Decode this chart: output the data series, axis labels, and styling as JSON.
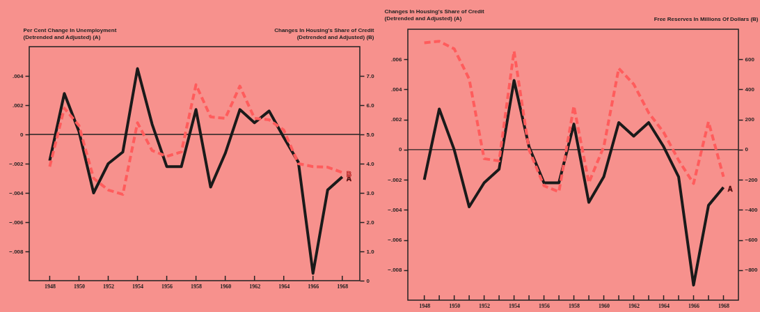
{
  "chart_data": [
    {
      "type": "line",
      "ylabel": "Per Cent Change In Unemployment\n(Detrended and Adjusted)  (A)",
      "y2label": "Changes In Housing's Share of Credit\n(Detrended and Adjusted)    (B)",
      "x": [
        1948,
        1949,
        1950,
        1951,
        1952,
        1953,
        1954,
        1955,
        1956,
        1957,
        1958,
        1959,
        1960,
        1961,
        1962,
        1963,
        1964,
        1965,
        1966,
        1967,
        1968
      ],
      "xlim": [
        1946.6,
        1969.2
      ],
      "xticks": [
        1948,
        1950,
        1952,
        1954,
        1956,
        1958,
        1960,
        1962,
        1964,
        1966,
        1968
      ],
      "ylim": [
        -0.01,
        0.006
      ],
      "yticks": [
        {
          "value": 0.004,
          "label": ".004"
        },
        {
          "value": 0.002,
          "label": ".002"
        },
        0,
        {
          "value": -0.002,
          "label": "−.002"
        },
        {
          "value": -0.004,
          "label": "−.004"
        },
        {
          "value": -0.006,
          "label": "−.006"
        },
        {
          "value": -0.008,
          "label": "−.008"
        }
      ],
      "y2lim": [
        0,
        8
      ],
      "y2ticks": [
        {
          "value": 7,
          "label": "7.0"
        },
        {
          "value": 6,
          "label": "6.0"
        },
        {
          "value": 5,
          "label": "5.0"
        },
        {
          "value": 4,
          "label": "4.0"
        },
        {
          "value": 3,
          "label": "3.0"
        },
        {
          "value": 2,
          "label": "2.0"
        },
        {
          "value": 1,
          "label": "1.0"
        },
        0
      ],
      "ref_lines": [
        {
          "axis": "y",
          "value": 0
        }
      ],
      "series": [
        {
          "name": "A",
          "color": "#1a1a1a",
          "line_style": "solid",
          "values": [
            -0.0018,
            0.0028,
            0.0002,
            -0.004,
            -0.002,
            -0.0012,
            0.0045,
            0.0007,
            -0.0022,
            -0.0022,
            0.0017,
            -0.0036,
            -0.0013,
            0.0017,
            0.0008,
            0.0016,
            -0.0002,
            -0.0019,
            -0.0095,
            -0.0038,
            -0.0029
          ]
        },
        {
          "name": "B",
          "color": "#ff5c5c",
          "line_style": "dashed",
          "axis": "y2",
          "values": [
            3.9,
            5.9,
            5.3,
            3.5,
            3.1,
            2.95,
            5.4,
            4.45,
            4.25,
            4.4,
            6.7,
            5.6,
            5.55,
            6.65,
            5.55,
            5.5,
            5.15,
            4.0,
            3.9,
            3.88,
            3.7
          ]
        }
      ]
    },
    {
      "type": "line",
      "ylabel": "Changes In Housing's Share of Credit\n(Detrended and Adjusted)  (A)",
      "y2label": "Free Reserves In Millions Of Dollars    (B)",
      "x": [
        1948,
        1949,
        1950,
        1951,
        1952,
        1953,
        1954,
        1955,
        1956,
        1957,
        1958,
        1959,
        1960,
        1961,
        1962,
        1963,
        1964,
        1965,
        1966,
        1967,
        1968
      ],
      "xlim": [
        1946.9,
        1969.0
      ],
      "xticks": [
        1948,
        {
          "value": 1949,
          "label": null
        },
        1950,
        {
          "value": 1951,
          "label": null
        },
        1952,
        {
          "value": 1953,
          "label": null
        },
        1954,
        {
          "value": 1955,
          "label": null
        },
        1956,
        {
          "value": 1957,
          "label": null
        },
        1958,
        {
          "value": 1959,
          "label": null
        },
        1960,
        {
          "value": 1961,
          "label": null
        },
        1962,
        {
          "value": 1963,
          "label": null
        },
        1964,
        {
          "value": 1965,
          "label": null
        },
        1966,
        {
          "value": 1967,
          "label": null
        },
        1968
      ],
      "ylim": [
        -0.01,
        0.008
      ],
      "yticks": [
        {
          "value": 0.006,
          "label": ".006"
        },
        {
          "value": 0.004,
          "label": ".004"
        },
        {
          "value": 0.002,
          "label": ".002"
        },
        0,
        {
          "value": -0.002,
          "label": "−.002"
        },
        {
          "value": -0.004,
          "label": "−.004"
        },
        {
          "value": -0.006,
          "label": "−.006"
        },
        {
          "value": -0.008,
          "label": "−.008"
        }
      ],
      "y2lim": [
        -1000,
        800
      ],
      "y2ticks": [
        600,
        400,
        200,
        0,
        {
          "value": -200,
          "label": "−200"
        },
        {
          "value": -400,
          "label": "−400"
        },
        {
          "value": -600,
          "label": "−600"
        },
        {
          "value": -800,
          "label": "−800"
        }
      ],
      "ref_lines": [
        {
          "axis": "y",
          "value": 0
        }
      ],
      "series": [
        {
          "name": "A",
          "color": "#1a1a1a",
          "line_style": "solid",
          "values": [
            -0.002,
            0.0027,
            0.0,
            -0.0038,
            -0.0022,
            -0.0013,
            0.0046,
            0.0002,
            -0.0022,
            -0.0022,
            0.0017,
            -0.0035,
            -0.0018,
            0.0018,
            0.0009,
            0.0018,
            0.0002,
            -0.0018,
            -0.009,
            -0.0037,
            -0.0025
          ]
        },
        {
          "color": "#ff5c5c",
          "line_style": "dashed",
          "axis": "y2",
          "values": [
            710,
            720,
            670,
            470,
            -60,
            -75,
            655,
            0,
            -240,
            -280,
            290,
            -220,
            20,
            540,
            435,
            245,
            115,
            -70,
            -225,
            185,
            -180
          ]
        }
      ]
    }
  ]
}
